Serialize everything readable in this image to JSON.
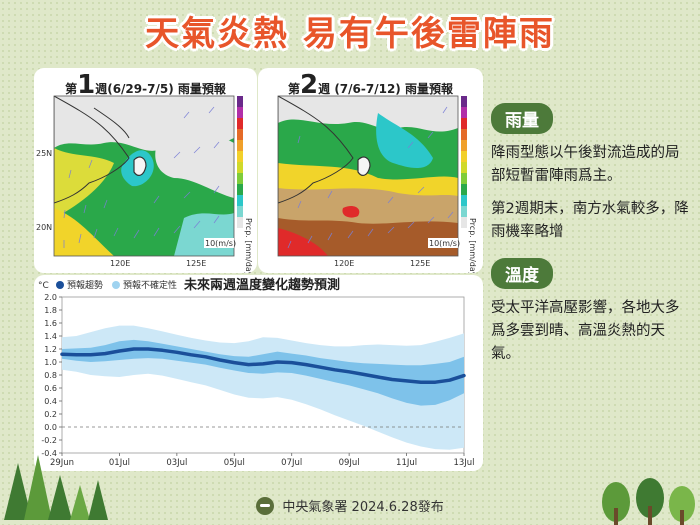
{
  "title": "天氣炎熱 易有午後雷陣雨",
  "maps": [
    {
      "week_prefix": "第",
      "week_num": "1",
      "week_suffix": "週(6/29-7/5) 雨量預報"
    },
    {
      "week_prefix": "第",
      "week_num": "2",
      "week_suffix": "週 (7/6-7/12) 雨量預報"
    }
  ],
  "map_labels": {
    "lat_25": "25N",
    "lat_20": "20N",
    "lon_120": "120E",
    "lon_125": "125E",
    "wind": "10(m/s)",
    "unit": "Prcp. [mm/day]"
  },
  "rain": {
    "label": "雨量",
    "p1": "降雨型態以午後對流造成的局部短暫雷陣雨爲主。",
    "p2": "第2週期末，南方水氣較多，降雨機率略增"
  },
  "temp": {
    "label": "溫度",
    "p1": "受太平洋高壓影響，各地大多爲多雲到晴、高溫炎熱的天氣。"
  },
  "footer": "中央氣象署 2024.6.28發布",
  "chart_data": {
    "type": "line",
    "title": "未來兩週溫度變化趨勢預測",
    "ylabel": "°C",
    "ylim": [
      -0.4,
      2.0
    ],
    "yticks": [
      -0.4,
      -0.2,
      0.0,
      0.2,
      0.4,
      0.6,
      0.8,
      1.0,
      1.2,
      1.4,
      1.6,
      1.8,
      2.0
    ],
    "xticks": [
      "29Jun",
      "01Jul",
      "03Jul",
      "05Jul",
      "07Jul",
      "09Jul",
      "11Jul",
      "13Jul"
    ],
    "legend": [
      "預報趨勢",
      "預報不確定性"
    ],
    "colors": {
      "trend": "#1a4f9a",
      "band_inner": "#7ec2ea",
      "band_outer": "#cde8f7"
    },
    "x": [
      0,
      0.5,
      1,
      1.5,
      2,
      2.5,
      3,
      3.5,
      4,
      4.5,
      5,
      5.5,
      6,
      6.5,
      7,
      7.5,
      8,
      8.5,
      9,
      9.5,
      10,
      10.5,
      11,
      11.5,
      12,
      12.5,
      13,
      13.5,
      14
    ],
    "series": [
      {
        "name": "預報趨勢",
        "values": [
          1.12,
          1.11,
          1.11,
          1.13,
          1.17,
          1.2,
          1.2,
          1.18,
          1.15,
          1.11,
          1.08,
          1.03,
          0.99,
          0.96,
          0.97,
          1.0,
          0.99,
          0.96,
          0.92,
          0.88,
          0.85,
          0.81,
          0.77,
          0.73,
          0.71,
          0.69,
          0.69,
          0.72,
          0.79
        ]
      },
      {
        "name": "inner_upper",
        "values": [
          1.2,
          1.21,
          1.22,
          1.26,
          1.32,
          1.34,
          1.32,
          1.28,
          1.24,
          1.2,
          1.16,
          1.12,
          1.09,
          1.08,
          1.12,
          1.16,
          1.13,
          1.1,
          1.06,
          1.03,
          1.0,
          0.98,
          0.97,
          0.96,
          0.95,
          0.95,
          0.97,
          1.0,
          1.08
        ]
      },
      {
        "name": "inner_lower",
        "values": [
          1.05,
          1.02,
          1.0,
          1.01,
          1.03,
          1.05,
          1.06,
          1.05,
          1.02,
          0.99,
          0.96,
          0.91,
          0.87,
          0.83,
          0.82,
          0.84,
          0.83,
          0.79,
          0.74,
          0.69,
          0.64,
          0.58,
          0.52,
          0.44,
          0.37,
          0.33,
          0.34,
          0.41,
          0.52
        ]
      },
      {
        "name": "outer_upper",
        "values": [
          1.38,
          1.4,
          1.46,
          1.52,
          1.56,
          1.56,
          1.52,
          1.47,
          1.42,
          1.37,
          1.33,
          1.3,
          1.29,
          1.32,
          1.38,
          1.37,
          1.33,
          1.29,
          1.26,
          1.24,
          1.24,
          1.26,
          1.27,
          1.26,
          1.25,
          1.26,
          1.31,
          1.37,
          1.44
        ]
      },
      {
        "name": "outer_lower",
        "values": [
          0.88,
          0.85,
          0.8,
          0.78,
          0.77,
          0.8,
          0.82,
          0.79,
          0.74,
          0.69,
          0.64,
          0.57,
          0.5,
          0.45,
          0.44,
          0.46,
          0.42,
          0.35,
          0.27,
          0.18,
          0.1,
          0.02,
          -0.07,
          -0.16,
          -0.24,
          -0.3,
          -0.34,
          -0.35,
          -0.32
        ]
      }
    ]
  }
}
